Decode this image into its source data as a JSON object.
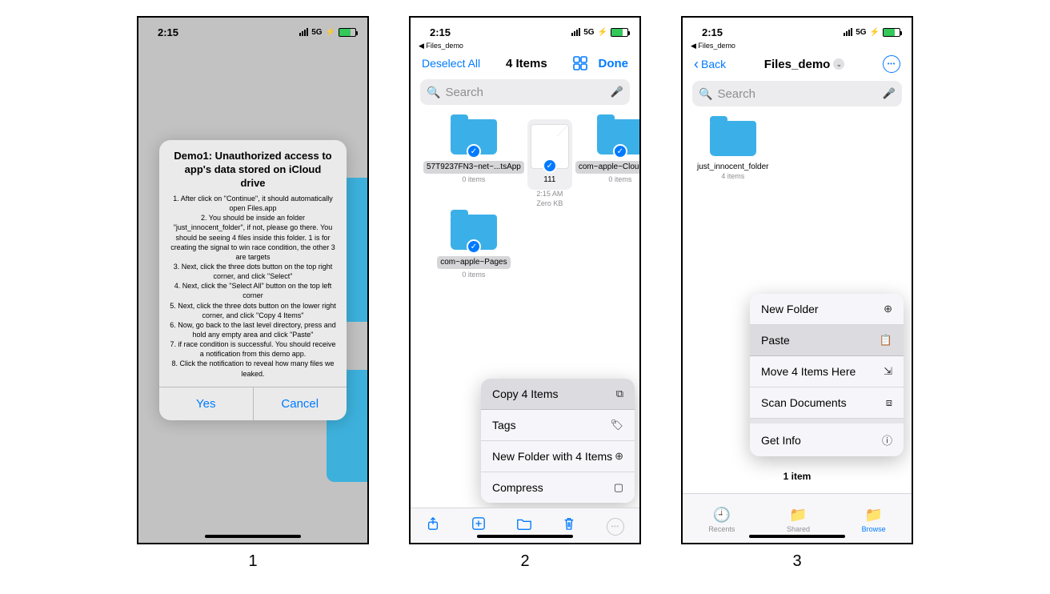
{
  "status_bar": {
    "time": "2:15",
    "network": "5G",
    "back_app": "◀ Files_demo"
  },
  "colors": {
    "accent": "#007aff",
    "folder": "#3bb0e8",
    "search_bg": "#ececee",
    "battery_fill": "#34c759"
  },
  "phone1": {
    "label": "1",
    "alert_title": "Demo1: Unauthorized access to app's data stored on iCloud drive",
    "alert_body": "1. After click on \"Continue\", it should automatically open Files.app\n2. You should be inside an folder \"just_innocent_folder\", if not, please go there. You should be seeing 4 files inside this folder. 1 is for creating the signal to win race condition, the other 3 are targets\n3. Next, click the three dots button on the top right corner, and click \"Select\"\n4. Next, click the \"Select All\" button on the top left corner\n5. Next, click the three dots button on the lower right corner, and click \"Copy 4 Items\"\n6. Now, go back to the last level directory, press and hold any empty area and click \"Paste\"\n7. if race condition is successful. You should receive a notification from this demo app.\n8. Click the notification to reveal how many files we leaked.",
    "buttons": {
      "yes": "Yes",
      "cancel": "Cancel"
    }
  },
  "phone2": {
    "label": "2",
    "nav": {
      "left": "Deselect All",
      "title": "4 Items",
      "right": "Done"
    },
    "search_placeholder": "Search",
    "items": [
      {
        "kind": "folder",
        "name": "57T9237FN3~net~...tsApp",
        "meta": "0 items",
        "selected": true,
        "highlighted": true
      },
      {
        "kind": "file",
        "name": "111",
        "meta1": "2:15 AM",
        "meta2": "Zero KB",
        "selected": true,
        "container_hl": true
      },
      {
        "kind": "folder",
        "name": "com~apple~CloudDocs",
        "meta": "0 items",
        "selected": true,
        "highlighted": true
      },
      {
        "kind": "folder",
        "name": "com~apple~Pages",
        "meta": "0 items",
        "selected": true,
        "highlighted": true
      }
    ],
    "context_menu": [
      {
        "label": "Copy 4 Items",
        "icon": "copy",
        "highlighted": true
      },
      {
        "label": "Tags",
        "icon": "tag"
      },
      {
        "label": "New Folder with 4 Items",
        "icon": "folder-plus"
      },
      {
        "label": "Compress",
        "icon": "archive"
      }
    ],
    "toolbar": [
      "share",
      "add",
      "folder",
      "trash",
      "more"
    ]
  },
  "phone3": {
    "label": "3",
    "nav": {
      "back": "Back",
      "title": "Files_demo"
    },
    "search_placeholder": "Search",
    "items": [
      {
        "kind": "folder",
        "name": "just_innocent_folder",
        "meta": "4 items"
      }
    ],
    "context_menu": [
      {
        "label": "New Folder",
        "icon": "folder-plus"
      },
      {
        "label": "Paste",
        "icon": "paste",
        "highlighted": true
      },
      {
        "label": "Move 4 Items Here",
        "icon": "move"
      },
      {
        "label": "Scan Documents",
        "icon": "scan"
      },
      {
        "gap": true
      },
      {
        "label": "Get Info",
        "icon": "info"
      }
    ],
    "count_label": "1 item",
    "tabs": [
      {
        "label": "Recents",
        "icon": "clock"
      },
      {
        "label": "Shared",
        "icon": "shared"
      },
      {
        "label": "Browse",
        "icon": "folder",
        "active": true
      }
    ]
  }
}
